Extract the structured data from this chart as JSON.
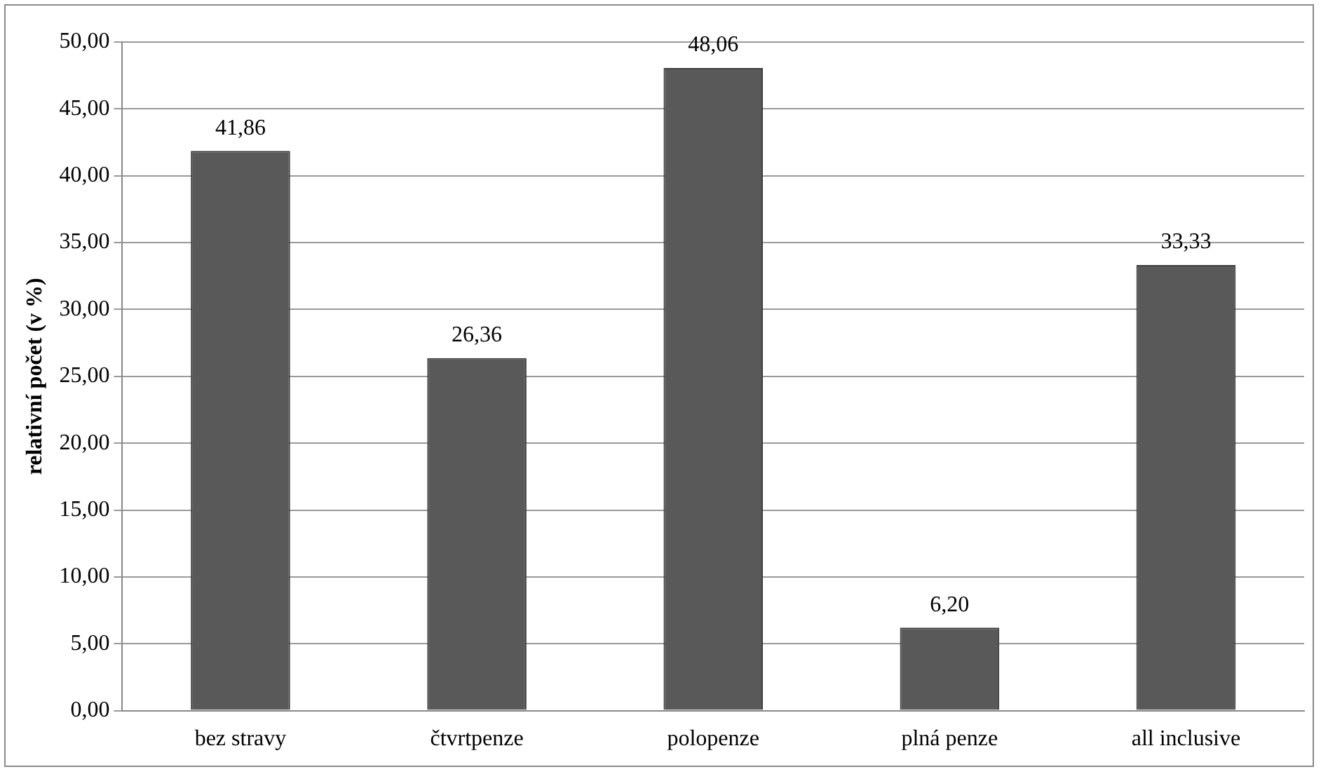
{
  "chart_data": {
    "type": "bar",
    "ylabel": "relativní počet (v %)",
    "categories": [
      "bez stravy",
      "čtvrtpenze",
      "polopenze",
      "plná penze",
      "all inclusive"
    ],
    "values": [
      41.86,
      26.36,
      48.06,
      6.2,
      33.33
    ],
    "value_labels": [
      "41,86",
      "26,36",
      "48,06",
      "6,20",
      "33,33"
    ],
    "color": "#595959",
    "ylim": [
      0,
      50
    ],
    "yticks": [
      {
        "value": 0,
        "label": "0,00"
      },
      {
        "value": 5,
        "label": "5,00"
      },
      {
        "value": 10,
        "label": "10,00"
      },
      {
        "value": 15,
        "label": "15,00"
      },
      {
        "value": 20,
        "label": "20,00"
      },
      {
        "value": 25,
        "label": "25,00"
      },
      {
        "value": 30,
        "label": "30,00"
      },
      {
        "value": 35,
        "label": "35,00"
      },
      {
        "value": 40,
        "label": "40,00"
      },
      {
        "value": 45,
        "label": "45,00"
      },
      {
        "value": 50,
        "label": "50,00"
      }
    ],
    "grid": "y",
    "legend": false
  }
}
